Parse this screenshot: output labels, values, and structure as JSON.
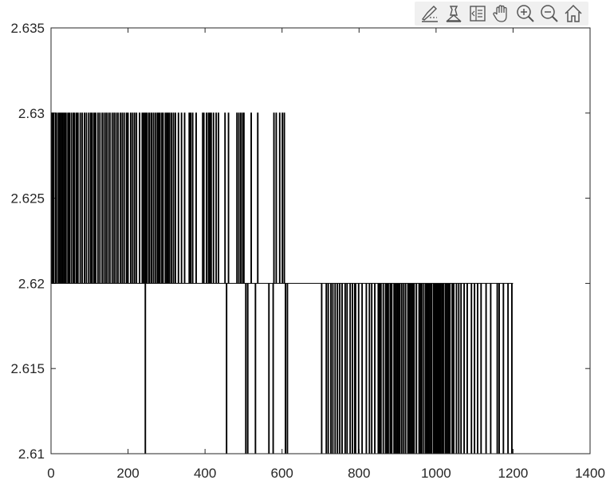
{
  "toolbar": {
    "buttons": [
      {
        "icon": "brush-data-icon"
      },
      {
        "icon": "datatip-icon"
      },
      {
        "icon": "legend-icon"
      },
      {
        "icon": "pan-hand-icon"
      },
      {
        "icon": "zoom-in-icon"
      },
      {
        "icon": "zoom-out-icon"
      },
      {
        "icon": "home-restore-icon"
      }
    ]
  },
  "chart_data": {
    "type": "line",
    "title": "",
    "xlabel": "",
    "ylabel": "",
    "xlim": [
      0,
      1400
    ],
    "ylim": [
      2.61,
      2.635
    ],
    "xticks": [
      "0",
      "200",
      "400",
      "600",
      "800",
      "1000",
      "1200",
      "1400"
    ],
    "xtick_values": [
      0,
      200,
      400,
      600,
      800,
      1000,
      1200,
      1400
    ],
    "yticks": [
      "2.61",
      "2.615",
      "2.62",
      "2.625",
      "2.63",
      "2.635"
    ],
    "ytick_values": [
      2.61,
      2.615,
      2.62,
      2.625,
      2.63,
      2.635
    ],
    "grid": false,
    "line_color": "#000000",
    "series": [
      {
        "style": "step",
        "segments": [
          {
            "x_start": 0,
            "x_end": 605,
            "base": 2.62,
            "spikes_to": 2.63,
            "spike_x": [
              1,
              3,
              5,
              6,
              11,
              13,
              18,
              20,
              23,
              27,
              30,
              34,
              38,
              43,
              47,
              52,
              57,
              60,
              65,
              69,
              75,
              80,
              86,
              91,
              97,
              102,
              106,
              111,
              115,
              121,
              126,
              132,
              137,
              142,
              147,
              152,
              158,
              163,
              168,
              173,
              179,
              184,
              189,
              195,
              199,
              206,
              211,
              216,
              221,
              229,
              236,
              240,
              241,
              245,
              248,
              253,
              255,
              260,
              265,
              270,
              275,
              278,
              282,
              287,
              290,
              296,
              300,
              303,
              307,
              312,
              317,
              322,
              330,
              338,
              346,
              358,
              362,
              367,
              376,
              393,
              396,
              403,
              408,
              411,
              415,
              421,
              428,
              434,
              451,
              460,
              482,
              487,
              492,
              497,
              500,
              519,
              536,
              578,
              584,
              593,
              600,
              605
            ]
          },
          {
            "x_start": 0,
            "x_end": 605,
            "base": 2.62,
            "spikes_to": 2.61,
            "spike_x": [
              244,
              455
            ]
          },
          {
            "x_start": 605,
            "x_end": 1200,
            "base": 2.62,
            "spikes_to": 2.61,
            "spike_x": [
              505,
              510,
              530,
              565,
              576,
              608,
              613,
              702,
              714,
              719,
              726,
              731,
              737,
              743,
              749,
              755,
              763,
              768,
              776,
              782,
              788,
              790,
              798,
              807,
              818,
              826,
              832,
              840,
              849,
              852,
              856,
              862,
              868,
              872,
              875,
              880,
              884,
              890,
              894,
              898,
              901,
              905,
              910,
              915,
              920,
              926,
              930,
              934,
              938,
              942,
              948,
              955,
              958,
              962,
              967,
              972,
              975,
              978,
              981,
              985,
              988,
              993,
              996,
              999,
              1002,
              1005,
              1008,
              1011,
              1015,
              1018,
              1023,
              1027,
              1031,
              1035,
              1041,
              1045,
              1052,
              1058,
              1064,
              1072,
              1080,
              1091,
              1099,
              1107,
              1116,
              1129,
              1141,
              1158,
              1163,
              1174,
              1186,
              1196
            ]
          }
        ]
      }
    ]
  }
}
